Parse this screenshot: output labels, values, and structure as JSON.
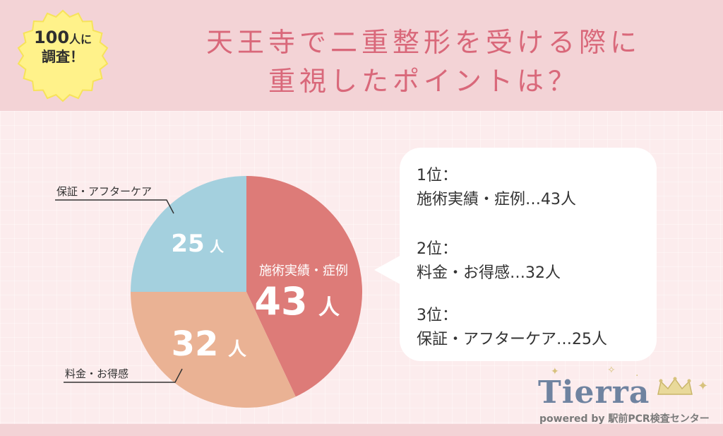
{
  "badge": {
    "line1_num": "100",
    "line1_suffix": "人に",
    "line2": "調査！"
  },
  "title": {
    "line1": "天王寺で二重整形を受ける際に",
    "line2": "重視したポイントは？"
  },
  "chart_data": {
    "type": "pie",
    "unit": "人",
    "slices": [
      {
        "label": "施術実績・症例",
        "value": 43,
        "color": "#dd7b78"
      },
      {
        "label": "料金・お得感",
        "value": 32,
        "color": "#eab294"
      },
      {
        "label": "保証・アフターケア",
        "value": 25,
        "color": "#a4d0de"
      }
    ]
  },
  "pie_labels": {
    "slice0_name": "施術実績・症例",
    "slice0_value": "43",
    "slice0_unit": "人",
    "slice1_value": "32",
    "slice1_unit": "人",
    "slice2_value": "25",
    "slice2_unit": "人",
    "callout_top_left": "保証・アフターケア",
    "callout_bottom_left": "料金・お得感"
  },
  "ranking": [
    {
      "rank": "1位：",
      "item": "施術実績・症例…43人"
    },
    {
      "rank": "2位：",
      "item": "料金・お得感…32人"
    },
    {
      "rank": "3位：",
      "item": "保証・アフターケア…25人"
    }
  ],
  "logo": {
    "word": "Tierra",
    "sub": "powered by 駅前PCR検査センター"
  }
}
